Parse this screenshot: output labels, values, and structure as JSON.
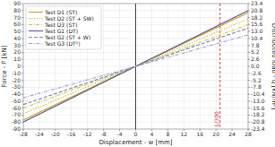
{
  "chart_data": {
    "type": "line",
    "x_label": "Displacement - w [mm]",
    "y_label": "Force - F [kN]",
    "y2_label": "Distributed load - q [kN/m²]",
    "x": [
      -28,
      28
    ],
    "xlim": [
      -28,
      28
    ],
    "xticks": [
      -28,
      -24,
      -20,
      -16,
      -12,
      -8,
      -4,
      0,
      4,
      8,
      12,
      16,
      20,
      24,
      28
    ],
    "ylim": [
      -90,
      90
    ],
    "yticks": [
      -90,
      -80,
      -70,
      -60,
      -50,
      -40,
      -30,
      -20,
      -10,
      0,
      10,
      20,
      30,
      40,
      50,
      60,
      70,
      80,
      90
    ],
    "y2lim": [
      -23.4,
      23.4
    ],
    "y2ticks": [
      -23.4,
      -20.8,
      -18.2,
      -15.6,
      {
        "value": -13,
        "label": "-13.0"
      },
      -10.4,
      -7.8,
      -5.2,
      -2.6,
      {
        "value": 0,
        "label": "0.0"
      },
      2.6,
      5.2,
      7.8,
      10.4,
      {
        "value": 13,
        "label": "13.0"
      },
      15.6,
      18.2,
      20.8,
      23.4
    ],
    "grid": true,
    "legend": "upper left",
    "annotations": [
      {
        "text": "L/300",
        "x": 21,
        "color": "#cc3333"
      }
    ],
    "series": [
      {
        "name": "Test D1 (ST)",
        "color": "#d4a820",
        "line_style": "solid",
        "values": [
          -77,
          77
        ]
      },
      {
        "name": "Test D2 (ST + SW)",
        "color": "#c8b840",
        "line_style": "dotted",
        "values": [
          -68.04,
          68.04
        ]
      },
      {
        "name": "Test D3 (ST)",
        "color": "#d0cc50",
        "line_style": "dashdot",
        "values": [
          -59.92,
          59.92
        ]
      },
      {
        "name": "Test G1 (DT)",
        "color": "#6060a0",
        "line_style": "solid",
        "values": [
          -80.08,
          80.08
        ]
      },
      {
        "name": "Test G2 (ST + W)",
        "color": "#8888bb",
        "line_style": "dashed",
        "values": [
          -54.88,
          54.88
        ]
      },
      {
        "name": "Test G3 (DT²)",
        "color": "#aaaacc",
        "line_style": "dashdot",
        "values": [
          -45.08,
          45.08
        ]
      }
    ]
  }
}
